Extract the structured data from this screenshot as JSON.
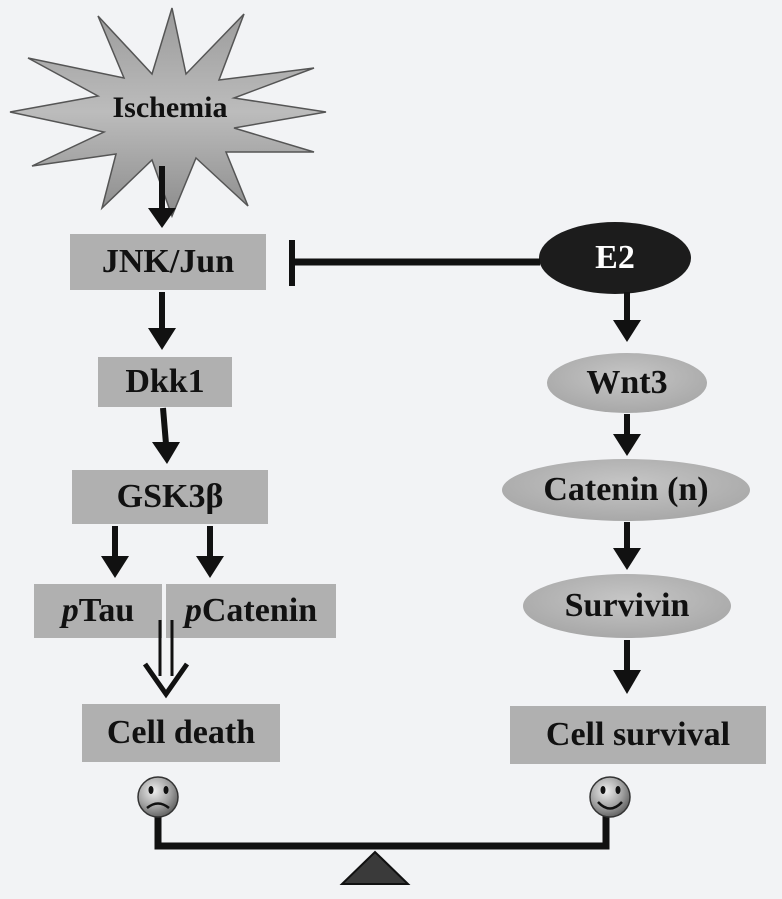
{
  "colors": {
    "background": "#f2f3f5",
    "box_fill": "#b0b0b0",
    "oval_fill": "#b8b8b8",
    "e2_fill": "#1c1c1c",
    "arrow": "#111111",
    "text": "#111111",
    "text_on_dark": "#ffffff"
  },
  "nodes": {
    "ischemia": "Ischemia",
    "jnk_jun": "JNK/Jun",
    "dkk1": "Dkk1",
    "gsk3b": "GSK3β",
    "ptau": {
      "prefix": "p",
      "rest": "Tau"
    },
    "pcatenin": {
      "prefix": "p",
      "rest": "Catenin"
    },
    "cell_death": "Cell death",
    "e2": "E2",
    "wnt3": "Wnt3",
    "catenin_n": "Catenin (n)",
    "survivin": "Survivin",
    "cell_survival": "Cell survival"
  },
  "icons": {
    "sad": "sad-face-icon",
    "happy": "happy-face-icon",
    "fulcrum": "fulcrum-triangle-icon"
  }
}
